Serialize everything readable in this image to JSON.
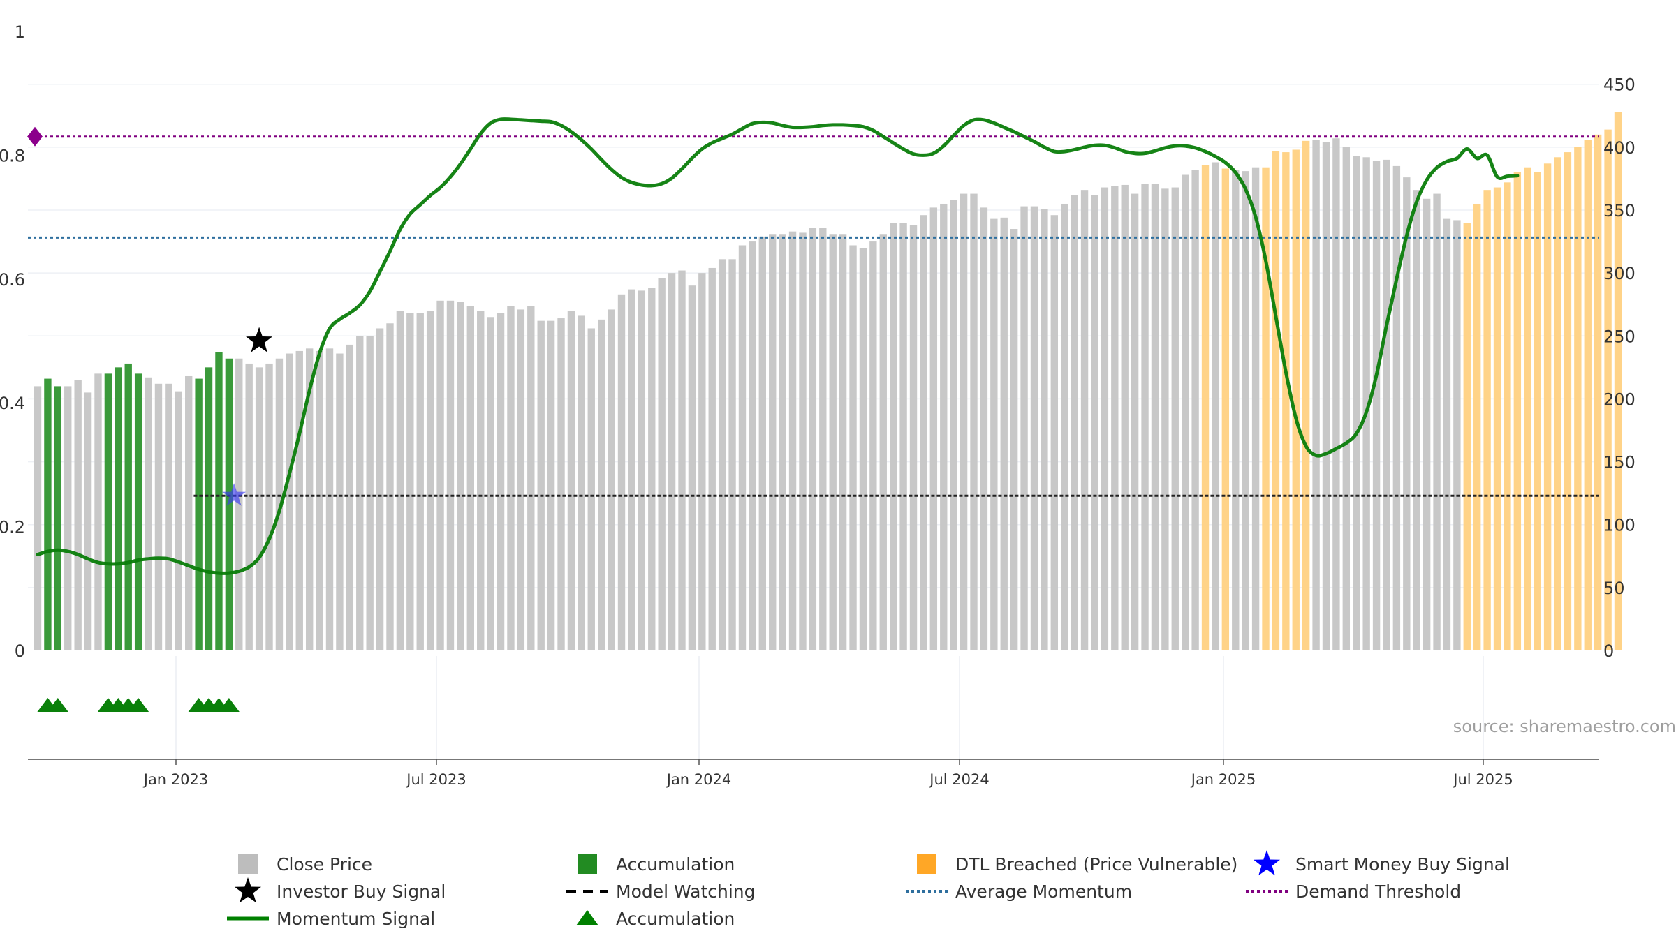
{
  "chart_data": {
    "type": "bar",
    "source_text": "source: sharemaestro.com",
    "x_tick_labels": [
      "Jan 2023",
      "Jul 2023",
      "Jan 2024",
      "Jul 2024",
      "Jan 2025",
      "Jul 2025"
    ],
    "left_axis": {
      "range": [
        0,
        1
      ],
      "ticks": [
        0,
        0.2,
        0.4,
        0.6,
        0.8,
        1
      ],
      "tick_labels": [
        "0",
        "0.2",
        "0.4",
        "0.6",
        "0.8",
        "1"
      ]
    },
    "right_axis": {
      "range": [
        0,
        492
      ],
      "ticks": [
        0,
        50,
        100,
        150,
        200,
        250,
        300,
        350,
        400,
        450
      ],
      "tick_labels": [
        "0",
        "50",
        "100",
        "150",
        "200",
        "250",
        "300",
        "350",
        "400",
        "450"
      ]
    },
    "bar_count": 158,
    "close_price": [
      210,
      216,
      210,
      210,
      215,
      205,
      220,
      220,
      225,
      228,
      220,
      217,
      212,
      212,
      206,
      218,
      216,
      225,
      237,
      232,
      232,
      228,
      225,
      228,
      232,
      236,
      238,
      240,
      238,
      240,
      236,
      243,
      250,
      250,
      256,
      260,
      270,
      268,
      268,
      270,
      278,
      278,
      277,
      274,
      270,
      265,
      268,
      274,
      271,
      274,
      262,
      262,
      264,
      270,
      266,
      256,
      263,
      271,
      283,
      287,
      286,
      288,
      296,
      300,
      302,
      290,
      300,
      304,
      311,
      311,
      322,
      325,
      329,
      331,
      331,
      333,
      332,
      336,
      336,
      331,
      331,
      322,
      320,
      325,
      331,
      340,
      340,
      338,
      346,
      352,
      355,
      358,
      363,
      363,
      352,
      343,
      344,
      335,
      353,
      353,
      351,
      346,
      355,
      362,
      366,
      362,
      368,
      369,
      370,
      363,
      371,
      371,
      367,
      368,
      378,
      382,
      386,
      388,
      383,
      382,
      381,
      384,
      384,
      397,
      396,
      398,
      405,
      406,
      404,
      407,
      400,
      393,
      392,
      389,
      390,
      385,
      376,
      366,
      359,
      363,
      343,
      342,
      340,
      355,
      366,
      368,
      372,
      380,
      384,
      380,
      387,
      392,
      396,
      400,
      406,
      410,
      414,
      428
    ],
    "accumulation_bar_indices": [
      1,
      2,
      7,
      8,
      9,
      10,
      16,
      17,
      18,
      19
    ],
    "dtl_breached_bar_indices": [
      116,
      118,
      122,
      123,
      124,
      125,
      126,
      142,
      143,
      144,
      145,
      146,
      147,
      148,
      149,
      150,
      151,
      152,
      153,
      154,
      155,
      156,
      157
    ],
    "momentum_signal": [
      [
        0,
        0.155
      ],
      [
        1,
        0.16
      ],
      [
        2,
        0.162
      ],
      [
        3,
        0.16
      ],
      [
        4,
        0.155
      ],
      [
        5,
        0.148
      ],
      [
        6,
        0.142
      ],
      [
        7,
        0.14
      ],
      [
        8,
        0.14
      ],
      [
        9,
        0.142
      ],
      [
        10,
        0.146
      ],
      [
        11,
        0.148
      ],
      [
        12,
        0.149
      ],
      [
        13,
        0.148
      ],
      [
        14,
        0.143
      ],
      [
        15,
        0.137
      ],
      [
        16,
        0.131
      ],
      [
        17,
        0.127
      ],
      [
        18,
        0.125
      ],
      [
        19,
        0.125
      ],
      [
        20,
        0.128
      ],
      [
        21,
        0.135
      ],
      [
        22,
        0.15
      ],
      [
        23,
        0.18
      ],
      [
        24,
        0.225
      ],
      [
        25,
        0.285
      ],
      [
        26,
        0.35
      ],
      [
        27,
        0.42
      ],
      [
        28,
        0.48
      ],
      [
        29,
        0.52
      ],
      [
        30,
        0.535
      ],
      [
        31,
        0.545
      ],
      [
        32,
        0.558
      ],
      [
        33,
        0.58
      ],
      [
        34,
        0.612
      ],
      [
        35,
        0.645
      ],
      [
        36,
        0.68
      ],
      [
        37,
        0.705
      ],
      [
        38,
        0.72
      ],
      [
        39,
        0.735
      ],
      [
        40,
        0.748
      ],
      [
        41,
        0.765
      ],
      [
        42,
        0.786
      ],
      [
        43,
        0.81
      ],
      [
        44,
        0.835
      ],
      [
        45,
        0.852
      ],
      [
        46,
        0.858
      ],
      [
        47,
        0.858
      ],
      [
        48,
        0.857
      ],
      [
        49,
        0.856
      ],
      [
        50,
        0.855
      ],
      [
        51,
        0.854
      ],
      [
        52,
        0.848
      ],
      [
        53,
        0.838
      ],
      [
        54,
        0.825
      ],
      [
        55,
        0.81
      ],
      [
        56,
        0.793
      ],
      [
        57,
        0.777
      ],
      [
        58,
        0.764
      ],
      [
        59,
        0.756
      ],
      [
        60,
        0.752
      ],
      [
        61,
        0.751
      ],
      [
        62,
        0.754
      ],
      [
        63,
        0.763
      ],
      [
        64,
        0.778
      ],
      [
        65,
        0.795
      ],
      [
        66,
        0.81
      ],
      [
        67,
        0.82
      ],
      [
        68,
        0.827
      ],
      [
        69,
        0.834
      ],
      [
        70,
        0.843
      ],
      [
        71,
        0.851
      ],
      [
        72,
        0.853
      ],
      [
        73,
        0.852
      ],
      [
        74,
        0.848
      ],
      [
        75,
        0.845
      ],
      [
        76,
        0.845
      ],
      [
        77,
        0.846
      ],
      [
        78,
        0.848
      ],
      [
        79,
        0.849
      ],
      [
        80,
        0.849
      ],
      [
        81,
        0.848
      ],
      [
        82,
        0.846
      ],
      [
        83,
        0.84
      ],
      [
        84,
        0.83
      ],
      [
        85,
        0.82
      ],
      [
        86,
        0.81
      ],
      [
        87,
        0.802
      ],
      [
        88,
        0.8
      ],
      [
        89,
        0.803
      ],
      [
        90,
        0.815
      ],
      [
        91,
        0.832
      ],
      [
        92,
        0.848
      ],
      [
        93,
        0.857
      ],
      [
        94,
        0.857
      ],
      [
        95,
        0.852
      ],
      [
        96,
        0.845
      ],
      [
        97,
        0.838
      ],
      [
        98,
        0.83
      ],
      [
        99,
        0.822
      ],
      [
        100,
        0.813
      ],
      [
        101,
        0.806
      ],
      [
        102,
        0.806
      ],
      [
        103,
        0.809
      ],
      [
        104,
        0.813
      ],
      [
        105,
        0.816
      ],
      [
        106,
        0.816
      ],
      [
        107,
        0.812
      ],
      [
        108,
        0.806
      ],
      [
        109,
        0.803
      ],
      [
        110,
        0.803
      ],
      [
        111,
        0.807
      ],
      [
        112,
        0.812
      ],
      [
        113,
        0.815
      ],
      [
        114,
        0.815
      ],
      [
        115,
        0.812
      ],
      [
        116,
        0.806
      ],
      [
        117,
        0.798
      ],
      [
        118,
        0.788
      ],
      [
        119,
        0.772
      ],
      [
        120,
        0.745
      ],
      [
        121,
        0.7
      ],
      [
        122,
        0.63
      ],
      [
        123,
        0.54
      ],
      [
        124,
        0.45
      ],
      [
        125,
        0.375
      ],
      [
        126,
        0.33
      ],
      [
        127,
        0.315
      ],
      [
        128,
        0.318
      ],
      [
        129,
        0.326
      ],
      [
        130,
        0.335
      ],
      [
        131,
        0.35
      ],
      [
        132,
        0.385
      ],
      [
        133,
        0.445
      ],
      [
        134,
        0.525
      ],
      [
        135,
        0.6
      ],
      [
        136,
        0.67
      ],
      [
        137,
        0.725
      ],
      [
        138,
        0.76
      ],
      [
        139,
        0.78
      ],
      [
        140,
        0.79
      ],
      [
        141,
        0.795
      ],
      [
        142,
        0.81
      ],
      [
        143,
        0.795
      ],
      [
        144,
        0.8
      ],
      [
        145,
        0.765
      ],
      [
        146,
        0.766
      ],
      [
        147,
        0.767
      ]
    ],
    "demand_threshold": 0.83,
    "average_momentum": 0.667,
    "model_watching_level": 0.25,
    "model_watching_start_bar": 15.5,
    "investor_buy_signal": {
      "bar": 22,
      "value": 0.5
    },
    "smart_money_buy_signal": {
      "bar": 19.5,
      "value": 0.25
    },
    "demand_marker": {
      "bar": 0,
      "value": 0.83
    },
    "accumulation_triangle_bars": [
      1,
      2,
      7,
      8,
      9,
      10,
      16,
      17,
      18,
      19
    ],
    "legend": [
      {
        "label": "Close Price",
        "color": "#bdbdbd",
        "kind": "square"
      },
      {
        "label": "Accumulation",
        "color": "#228b22",
        "kind": "square"
      },
      {
        "label": "DTL Breached (Price Vulnerable)",
        "color": "#ffa726",
        "kind": "square"
      },
      {
        "label": "Smart Money Buy Signal",
        "color": "#0000ff",
        "kind": "star"
      },
      {
        "label": "Investor Buy Signal",
        "color": "#000000",
        "kind": "star"
      },
      {
        "label": "Model Watching",
        "color": "#000000",
        "kind": "dash"
      },
      {
        "label": "Average Momentum",
        "color": "#2e6f9e",
        "kind": "dot"
      },
      {
        "label": "Demand Threshold",
        "color": "#800080",
        "kind": "dot"
      },
      {
        "label": "Momentum Signal",
        "color": "#008000",
        "kind": "line"
      },
      {
        "label": "Accumulation",
        "color": "#008000",
        "kind": "triangle"
      }
    ]
  }
}
